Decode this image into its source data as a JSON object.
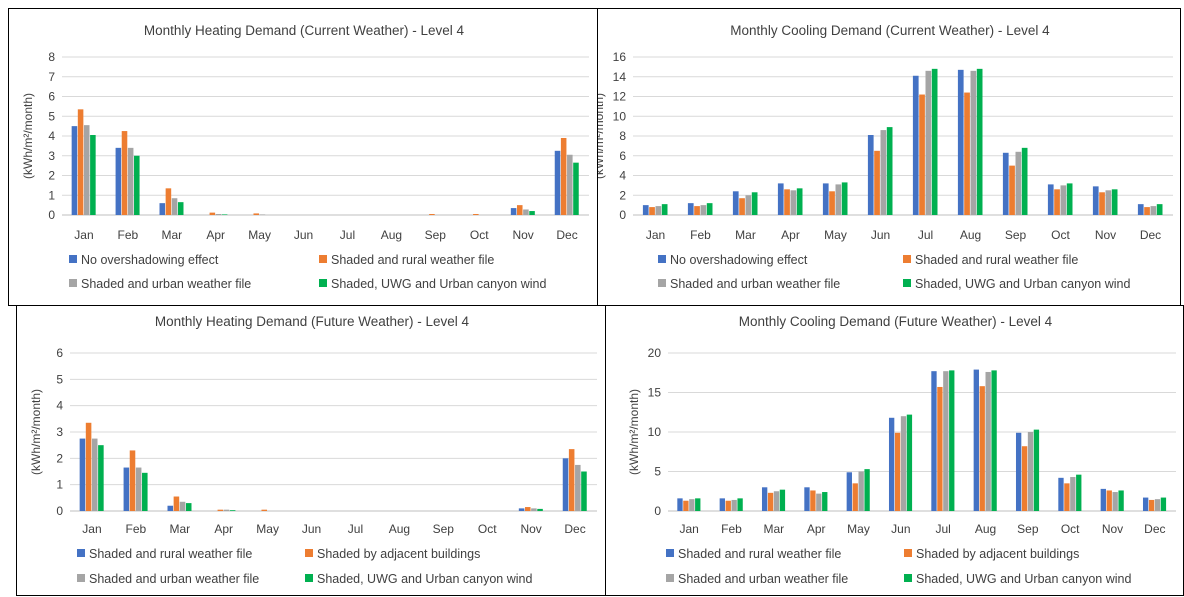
{
  "colors": {
    "blue": "#4472c4",
    "orange": "#ed7d31",
    "gray": "#a5a5a5",
    "green": "#00b050"
  },
  "chart_data": [
    {
      "type": "bar",
      "title": "Monthly Heating Demand (Current Weather) - Level 4",
      "ylabel": "(kWh/m²/month)",
      "ylim": [
        0,
        8
      ],
      "yticks": [
        0,
        1,
        2,
        3,
        4,
        5,
        6,
        7,
        8
      ],
      "categories": [
        "Jan",
        "Feb",
        "Mar",
        "Apr",
        "May",
        "Jun",
        "Jul",
        "Aug",
        "Sep",
        "Oct",
        "Nov",
        "Dec"
      ],
      "grid": true,
      "legend": "bottom",
      "series": [
        {
          "name": "No overshadowing effect",
          "color": "#4472c4",
          "values": [
            4.5,
            3.4,
            0.6,
            0,
            0,
            0,
            0,
            0,
            0,
            0,
            0.35,
            3.25
          ]
        },
        {
          "name": "Shaded and rural weather file",
          "color": "#ed7d31",
          "values": [
            5.35,
            4.25,
            1.35,
            0.12,
            0.08,
            0,
            0,
            0,
            0.05,
            0.05,
            0.5,
            3.9
          ]
        },
        {
          "name": "Shaded and urban weather file",
          "color": "#a5a5a5",
          "values": [
            4.55,
            3.4,
            0.85,
            0.05,
            0.03,
            0,
            0,
            0,
            0,
            0,
            0.28,
            3.05
          ]
        },
        {
          "name": "Shaded, UWG and Urban canyon wind",
          "color": "#00b050",
          "values": [
            4.05,
            3.0,
            0.65,
            0.03,
            0,
            0,
            0,
            0,
            0,
            0,
            0.2,
            2.65
          ]
        }
      ]
    },
    {
      "type": "bar",
      "title": "Monthly Cooling Demand (Current Weather) - Level 4",
      "ylabel": "(kWh/m²/month)",
      "ylim": [
        0,
        16
      ],
      "yticks": [
        0,
        2,
        4,
        6,
        8,
        10,
        12,
        14,
        16
      ],
      "categories": [
        "Jan",
        "Feb",
        "Mar",
        "Apr",
        "May",
        "Jun",
        "Jul",
        "Aug",
        "Sep",
        "Oct",
        "Nov",
        "Dec"
      ],
      "grid": true,
      "legend": "bottom",
      "series": [
        {
          "name": "No overshadowing effect",
          "color": "#4472c4",
          "values": [
            1.0,
            1.2,
            2.4,
            3.2,
            3.2,
            8.1,
            14.1,
            14.7,
            6.3,
            3.1,
            2.9,
            1.1
          ]
        },
        {
          "name": "Shaded and rural weather file",
          "color": "#ed7d31",
          "values": [
            0.8,
            0.9,
            1.7,
            2.6,
            2.4,
            6.5,
            12.2,
            12.4,
            5.0,
            2.6,
            2.3,
            0.8
          ]
        },
        {
          "name": "Shaded and urban weather file",
          "color": "#a5a5a5",
          "values": [
            0.9,
            1.0,
            2.0,
            2.5,
            3.1,
            8.6,
            14.6,
            14.6,
            6.4,
            3.0,
            2.5,
            0.9
          ]
        },
        {
          "name": "Shaded, UWG and Urban canyon wind",
          "color": "#00b050",
          "values": [
            1.1,
            1.2,
            2.3,
            2.7,
            3.3,
            8.9,
            14.8,
            14.8,
            6.8,
            3.2,
            2.6,
            1.1
          ]
        }
      ]
    },
    {
      "type": "bar",
      "title": "Monthly Heating Demand (Future Weather) - Level 4",
      "ylabel": "(kWh/m²/month)",
      "ylim": [
        0,
        6
      ],
      "yticks": [
        0,
        1,
        2,
        3,
        4,
        5,
        6
      ],
      "categories": [
        "Jan",
        "Feb",
        "Mar",
        "Apr",
        "May",
        "Jun",
        "Jul",
        "Aug",
        "Sep",
        "Oct",
        "Nov",
        "Dec"
      ],
      "grid": true,
      "legend": "bottom",
      "series": [
        {
          "name": "Shaded and rural weather file",
          "color": "#4472c4",
          "values": [
            2.75,
            1.65,
            0.2,
            0,
            0,
            0,
            0,
            0,
            0,
            0,
            0.1,
            2.0
          ]
        },
        {
          "name": "Shaded by adjacent buildings",
          "color": "#ed7d31",
          "values": [
            3.35,
            2.3,
            0.55,
            0.05,
            0.05,
            0,
            0,
            0,
            0,
            0,
            0.15,
            2.35
          ]
        },
        {
          "name": "Shaded and urban weather file",
          "color": "#a5a5a5",
          "values": [
            2.75,
            1.65,
            0.35,
            0.05,
            0,
            0,
            0,
            0,
            0,
            0,
            0.1,
            1.75
          ]
        },
        {
          "name": "Shaded, UWG and Urban canyon wind",
          "color": "#00b050",
          "values": [
            2.5,
            1.45,
            0.3,
            0.03,
            0,
            0,
            0,
            0,
            0,
            0,
            0.08,
            1.5
          ]
        }
      ]
    },
    {
      "type": "bar",
      "title": "Monthly Cooling Demand (Future Weather) - Level 4",
      "ylabel": "(kWh/m²/month)",
      "ylim": [
        0,
        20
      ],
      "yticks": [
        0,
        5,
        10,
        15,
        20
      ],
      "categories": [
        "Jan",
        "Feb",
        "Mar",
        "Apr",
        "May",
        "Jun",
        "Jul",
        "Aug",
        "Sep",
        "Oct",
        "Nov",
        "Dec"
      ],
      "grid": true,
      "legend": "bottom",
      "series": [
        {
          "name": "Shaded and rural weather file",
          "color": "#4472c4",
          "values": [
            1.6,
            1.6,
            3.0,
            3.0,
            4.9,
            11.8,
            17.7,
            17.9,
            9.9,
            4.2,
            2.8,
            1.7
          ]
        },
        {
          "name": "Shaded by adjacent buildings",
          "color": "#ed7d31",
          "values": [
            1.3,
            1.3,
            2.3,
            2.6,
            3.5,
            9.9,
            15.7,
            15.8,
            8.2,
            3.5,
            2.6,
            1.4
          ]
        },
        {
          "name": "Shaded and urban weather file",
          "color": "#a5a5a5",
          "values": [
            1.5,
            1.4,
            2.5,
            2.2,
            5.0,
            12.0,
            17.7,
            17.6,
            10.0,
            4.3,
            2.4,
            1.5
          ]
        },
        {
          "name": "Shaded, UWG and Urban canyon wind",
          "color": "#00b050",
          "values": [
            1.6,
            1.6,
            2.7,
            2.4,
            5.3,
            12.2,
            17.8,
            17.8,
            10.3,
            4.6,
            2.6,
            1.7
          ]
        }
      ]
    }
  ]
}
